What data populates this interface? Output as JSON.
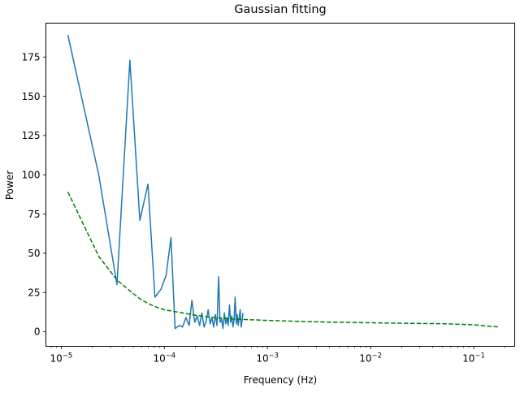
{
  "chart_data": {
    "type": "line",
    "title": "Gaussian fitting",
    "xlabel": "Frequency (Hz)",
    "ylabel": "Power",
    "xscale": "log",
    "xlim": [
      7.1e-06,
      0.25
    ],
    "ylim": [
      -9.3,
      196.6
    ],
    "grid": false,
    "legend": "none",
    "y_ticks": [
      0,
      25,
      50,
      75,
      100,
      125,
      150,
      175
    ],
    "x_ticks": [
      {
        "value": 1e-05,
        "label_base": "10",
        "label_exp": "−5"
      },
      {
        "value": 0.0001,
        "label_base": "10",
        "label_exp": "−4"
      },
      {
        "value": 0.001,
        "label_base": "10",
        "label_exp": "−3"
      },
      {
        "value": 0.01,
        "label_base": "10",
        "label_exp": "−2"
      },
      {
        "value": 0.1,
        "label_base": "10",
        "label_exp": "−1"
      }
    ],
    "series": [
      {
        "style": "solid",
        "color": "#1f77b4",
        "x": [
          1.16e-05,
          2.31e-05,
          3.47e-05,
          4.63e-05,
          5.79e-05,
          6.94e-05,
          8.1e-05,
          9.26e-05,
          0.000104,
          0.000116,
          0.000127,
          0.000139,
          0.00015,
          0.000162,
          0.000174,
          0.000185,
          0.000197,
          0.000208,
          0.00022,
          0.000231,
          0.000243,
          0.000255,
          0.000266,
          0.000278,
          0.000289,
          0.000301,
          0.000312,
          0.000324,
          0.000336,
          0.000347,
          0.000359,
          0.00037,
          0.000382,
          0.000394,
          0.000405,
          0.000417,
          0.000428,
          0.00044,
          0.000451,
          0.000463,
          0.000475,
          0.000486,
          0.000498,
          0.000509,
          0.000521,
          0.000532,
          0.000544,
          0.000556,
          0.000567,
          0.000579
        ],
        "y": [
          189,
          100,
          30,
          173,
          71,
          94,
          22,
          27,
          36,
          60,
          2,
          4,
          3,
          9,
          4,
          20,
          6,
          10,
          4,
          12,
          3,
          7,
          14,
          5,
          9,
          3,
          11,
          4,
          35,
          6,
          8,
          2,
          12,
          5,
          9,
          4,
          17,
          6,
          10,
          3,
          8,
          22,
          5,
          11,
          4,
          9,
          14,
          3,
          7,
          12
        ]
      },
      {
        "style": "dashed",
        "color": "#008000",
        "x": [
          1.16e-05,
          2.31e-05,
          3.47e-05,
          4.63e-05,
          5.79e-05,
          6.94e-05,
          8.1e-05,
          0.0001,
          0.00015,
          0.0002,
          0.0003,
          0.0005,
          0.001,
          0.002,
          0.005,
          0.01,
          0.02,
          0.05,
          0.1,
          0.174
        ],
        "y": [
          89,
          48,
          33,
          26,
          21,
          18,
          16,
          14,
          12,
          10.5,
          9,
          8,
          7.2,
          6.6,
          6,
          5.7,
          5.4,
          5.1,
          4.4,
          3
        ]
      }
    ]
  }
}
